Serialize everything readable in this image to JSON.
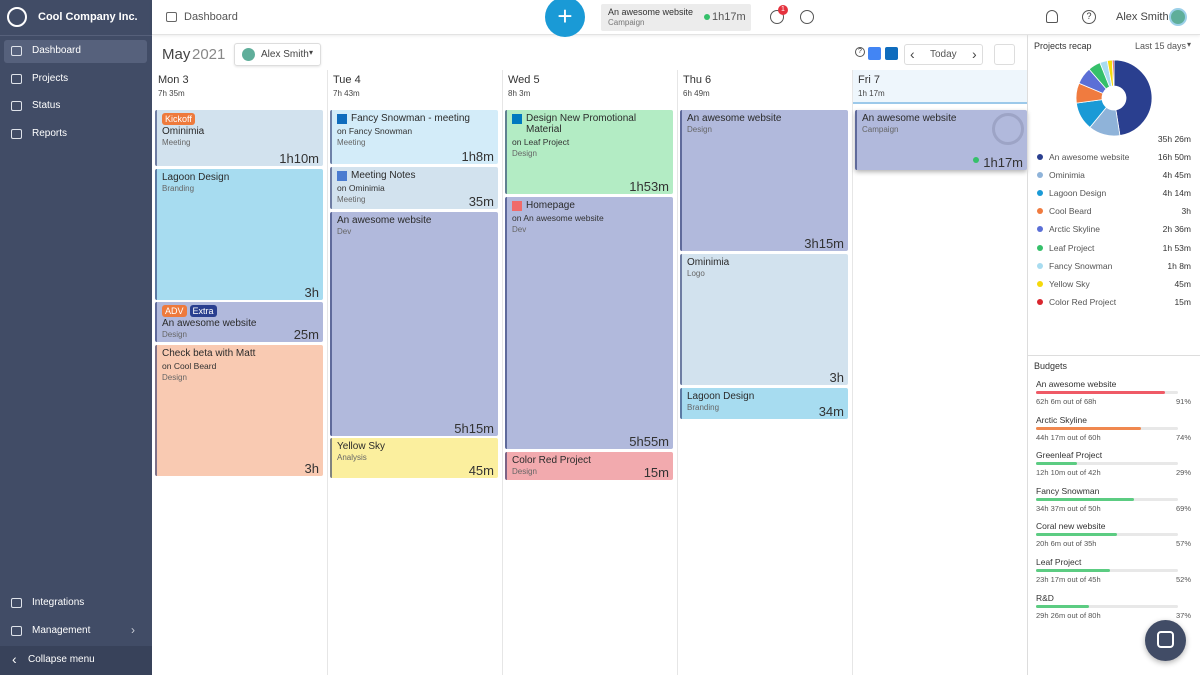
{
  "sidebar": {
    "company": "Cool Company Inc.",
    "nav": [
      "Dashboard",
      "Projects",
      "Status",
      "Reports"
    ],
    "bottom_nav": [
      "Integrations",
      "Management",
      "Collapse menu"
    ]
  },
  "topbar": {
    "title": "Dashboard",
    "timer": {
      "project": "An awesome website",
      "tag": "Campaign",
      "elapsed": "1h17m"
    },
    "notifications": "1",
    "user": "Alex Smith"
  },
  "calendar": {
    "month": "May",
    "year": "2021",
    "user": "Alex Smith",
    "today": "Today",
    "days": [
      {
        "label": "Mon 3",
        "total": "7h 35m",
        "events": [
          {
            "badges": [
              {
                "text": "Kickoff",
                "color": "#ee7a3c"
              }
            ],
            "title": "Ominimia",
            "tag": "Meeting",
            "duration": "1h10m",
            "color": "#d2e2ee"
          },
          {
            "title": "Lagoon Design",
            "tag": "Branding",
            "duration": "3h",
            "color": "#a7dcf0"
          },
          {
            "badges": [
              {
                "text": "ADV",
                "color": "#ee7a3c"
              },
              {
                "text": "Extra",
                "color": "#2a3f8f"
              }
            ],
            "title": "An awesome website",
            "tag": "Design",
            "duration": "25m",
            "color": "#b1b9dc"
          },
          {
            "title": "Check beta with Matt",
            "project": "on Cool Beard",
            "tag": "Design",
            "duration": "3h",
            "color": "#f9cab2"
          }
        ]
      },
      {
        "label": "Tue 4",
        "total": "7h 43m",
        "events": [
          {
            "title": "Fancy Snowman - meeting",
            "project": "on Fancy Snowman",
            "tag": "Meeting",
            "duration": "1h8m",
            "color": "#d3ecf9"
          },
          {
            "title": "Meeting Notes",
            "project": "on Ominimia",
            "tag": "Meeting",
            "duration": "35m",
            "color": "#d2e2ee"
          },
          {
            "title": "An awesome website",
            "tag": "Dev",
            "duration": "5h15m",
            "color": "#b1b9dc"
          },
          {
            "title": "Yellow Sky",
            "tag": "Analysis",
            "duration": "45m",
            "color": "#fbef9e"
          }
        ]
      },
      {
        "label": "Wed 5",
        "total": "8h 3m",
        "events": [
          {
            "title": "Design New Promotional Material",
            "project": "on Leaf Project",
            "tag": "Design",
            "duration": "1h53m",
            "color": "#b3ecc4"
          },
          {
            "title": "Homepage",
            "project": "on An awesome website",
            "tag": "Dev",
            "duration": "5h55m",
            "color": "#b1b9dc"
          },
          {
            "title": "Color Red Project",
            "tag": "Design",
            "duration": "15m",
            "color": "#f2aaae"
          }
        ]
      },
      {
        "label": "Thu 6",
        "total": "6h 49m",
        "events": [
          {
            "title": "An awesome website",
            "tag": "Design",
            "duration": "3h15m",
            "color": "#b1b9dc"
          },
          {
            "title": "Ominimia",
            "tag": "Logo",
            "duration": "3h",
            "color": "#d2e2ee"
          },
          {
            "title": "Lagoon Design",
            "tag": "Branding",
            "duration": "34m",
            "color": "#a7dcf0"
          }
        ]
      },
      {
        "label": "Fri 7",
        "total": "1h 17m",
        "events": [
          {
            "title": "An awesome website",
            "tag": "Campaign",
            "duration": "1h17m",
            "color": "#b1b9dc"
          }
        ]
      }
    ]
  },
  "projects_recap": {
    "title": "Projects recap",
    "period": "Last 15 days",
    "total": "35h 26m",
    "projects": [
      {
        "name": "An awesome website",
        "value": 1010,
        "value_label": "16h 50m",
        "color": "#2a3f8f"
      },
      {
        "name": "Ominimia",
        "value": 285,
        "value_label": "4h 45m",
        "color": "#8fb3d9"
      },
      {
        "name": "Lagoon Design",
        "value": 254,
        "value_label": "4h 14m",
        "color": "#1a9ad6"
      },
      {
        "name": "Cool Beard",
        "value": 180,
        "value_label": "3h",
        "color": "#f07b3f"
      },
      {
        "name": "Arctic Skyline",
        "value": 156,
        "value_label": "2h 36m",
        "color": "#5b6fd6"
      },
      {
        "name": "Leaf Project",
        "value": 113,
        "value_label": "1h 53m",
        "color": "#35c06a"
      },
      {
        "name": "Fancy Snowman",
        "value": 68,
        "value_label": "1h 8m",
        "color": "#a8dcf0"
      },
      {
        "name": "Yellow Sky",
        "value": 45,
        "value_label": "45m",
        "color": "#f5d90a"
      },
      {
        "name": "Color Red Project",
        "value": 15,
        "value_label": "15m",
        "color": "#d9262e"
      }
    ]
  },
  "budgets": {
    "title": "Budgets",
    "items": [
      {
        "name": "An awesome website",
        "detail": "62h 6m out of 68h",
        "percent": 91,
        "percent_label": "91%",
        "color": "#ef5a66"
      },
      {
        "name": "Arctic Skyline",
        "detail": "44h 17m out of 60h",
        "percent": 74,
        "percent_label": "74%",
        "color": "#f0884f"
      },
      {
        "name": "Greenleaf Project",
        "detail": "12h 10m out of 42h",
        "percent": 29,
        "percent_label": "29%",
        "color": "#5ccc82"
      },
      {
        "name": "Fancy Snowman",
        "detail": "34h 37m out of 50h",
        "percent": 69,
        "percent_label": "69%",
        "color": "#5ccc82"
      },
      {
        "name": "Coral new website",
        "detail": "20h 6m out of 35h",
        "percent": 57,
        "percent_label": "57%",
        "color": "#5ccc82"
      },
      {
        "name": "Leaf Project",
        "detail": "23h 17m out of 45h",
        "percent": 52,
        "percent_label": "52%",
        "color": "#5ccc82"
      },
      {
        "name": "R&D",
        "detail": "29h 26m out of 80h",
        "percent": 37,
        "percent_label": "37%",
        "color": "#5ccc82"
      }
    ]
  }
}
